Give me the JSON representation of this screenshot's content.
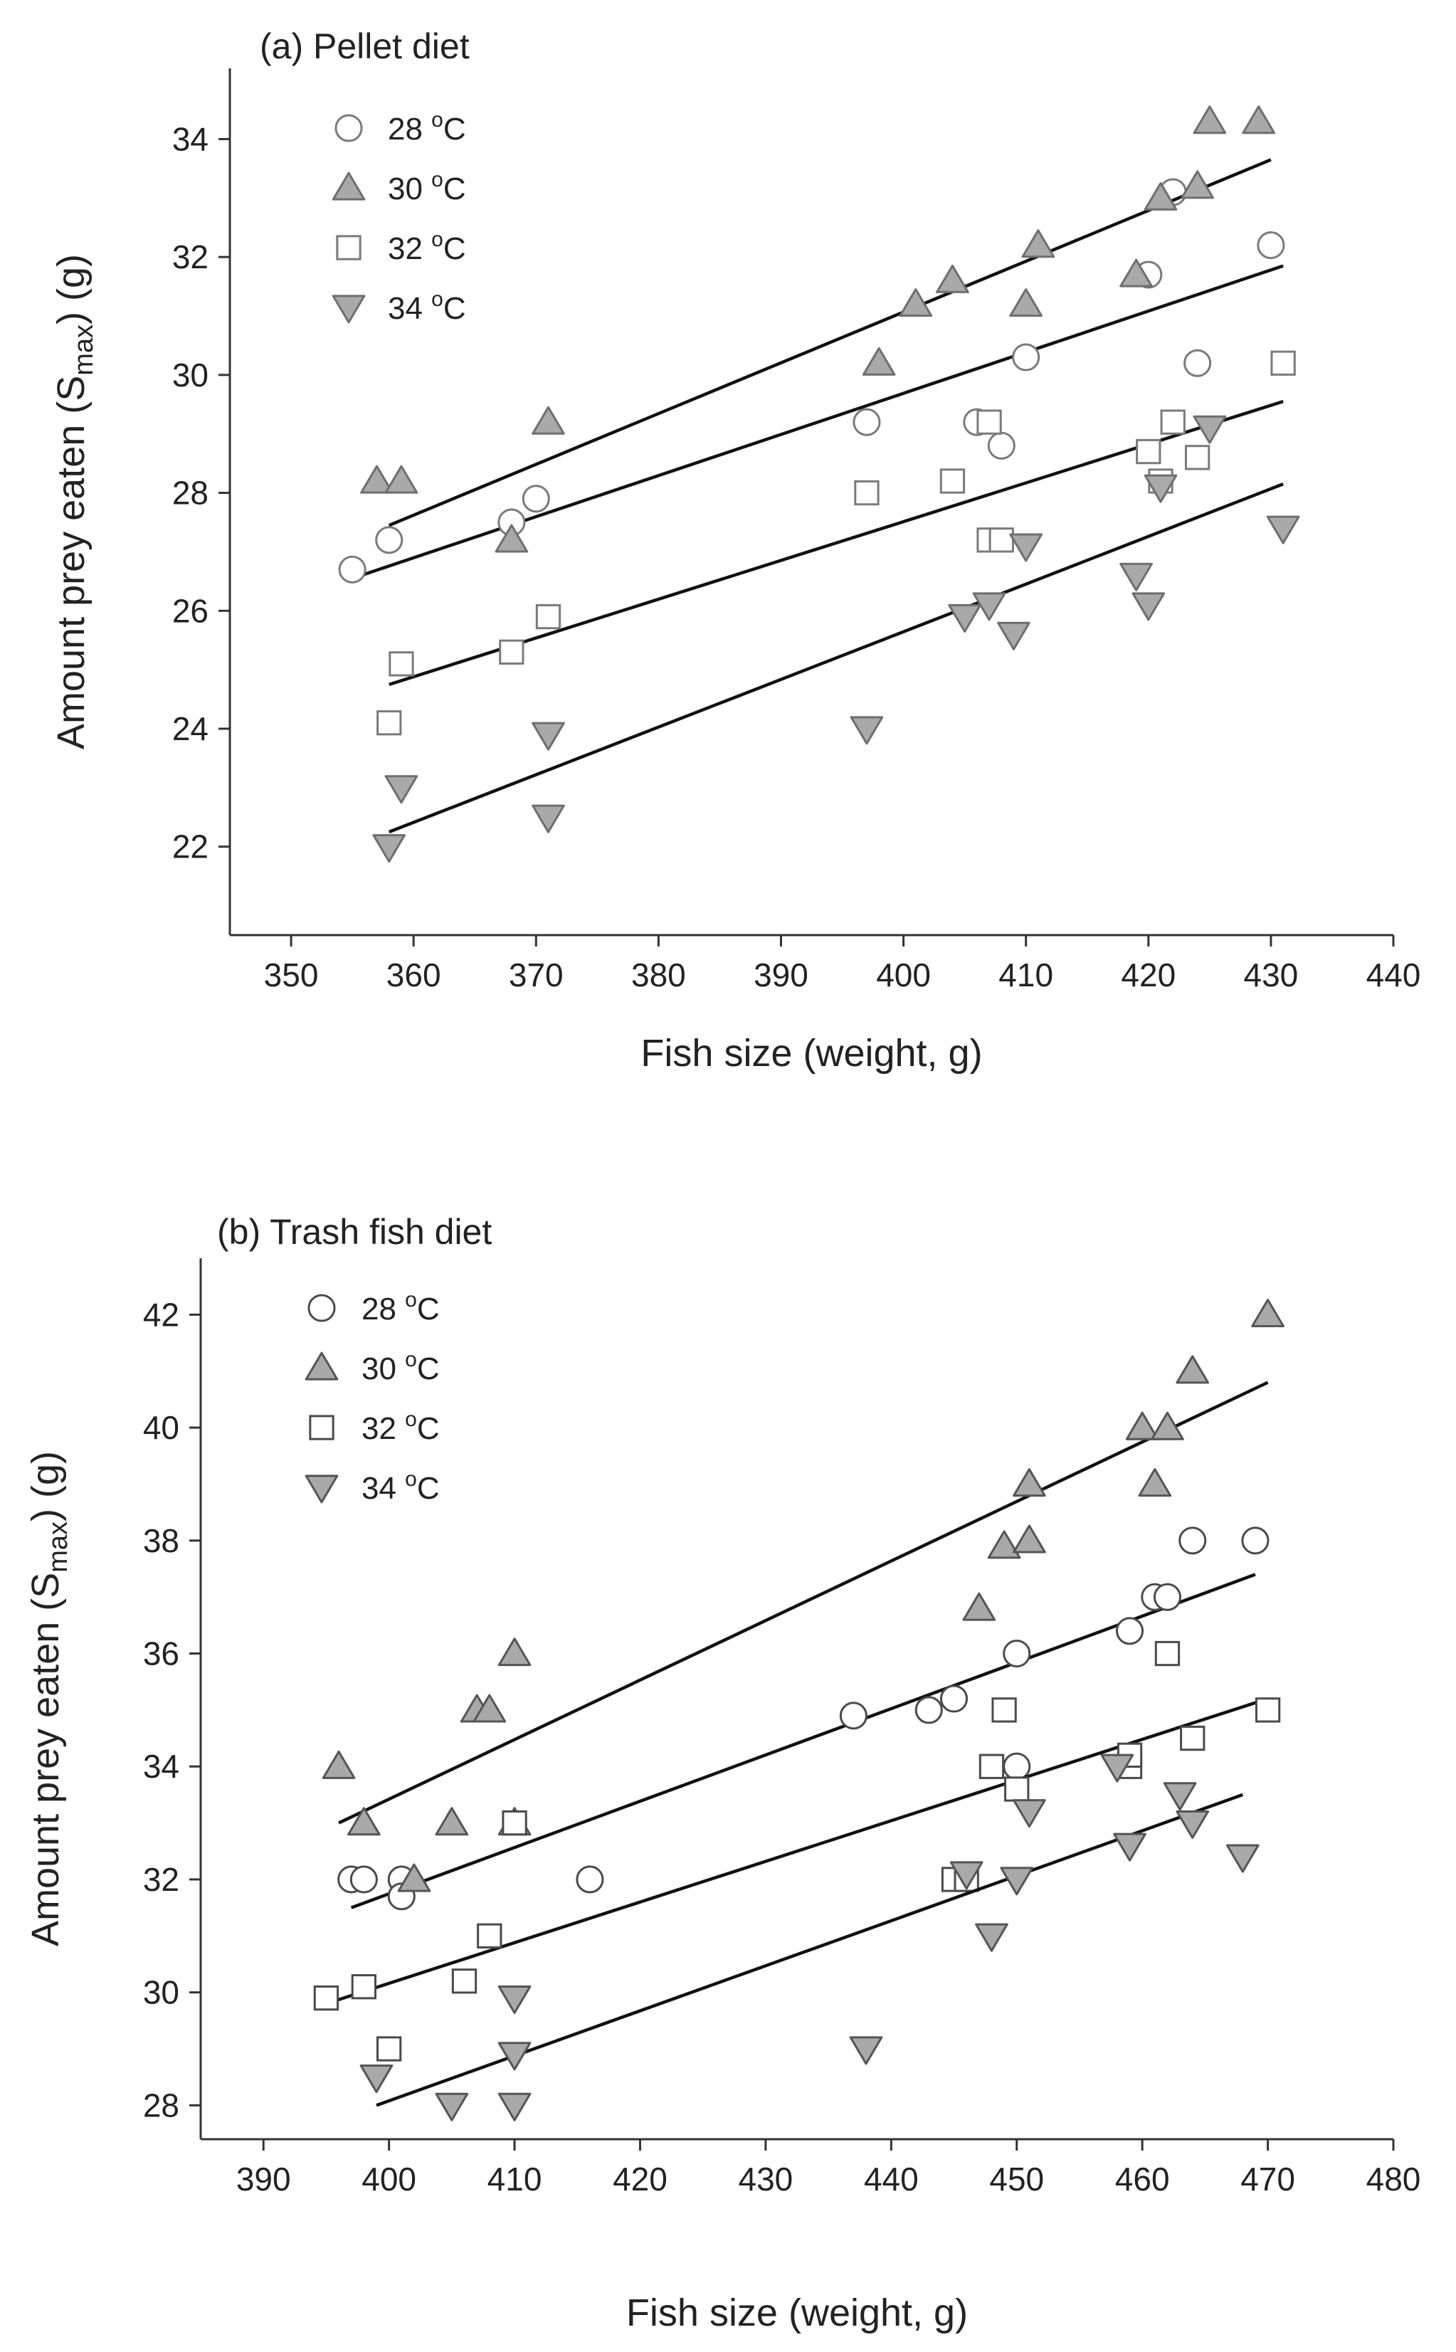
{
  "chart_data": [
    {
      "type": "scatter",
      "title": "(a) Pellet diet",
      "xlabel": "Fish size (weight, g)",
      "ylabel_parts": {
        "pre": "Amount prey eaten (S",
        "sub": "max",
        "post": ") (g)"
      },
      "xlim": [
        345,
        440
      ],
      "ylim": [
        20.5,
        35.2
      ],
      "xticks": [
        350,
        360,
        370,
        380,
        390,
        400,
        410,
        420,
        430,
        440
      ],
      "yticks": [
        22,
        24,
        26,
        28,
        30,
        32,
        34
      ],
      "grid": false,
      "legend_position": "top-left",
      "series": [
        {
          "name": "28 °C",
          "temp": "28",
          "marker": "circle",
          "fill": "#ffffff",
          "stroke": "#7a7a7a",
          "points": [
            [
              355,
              26.7
            ],
            [
              358,
              27.2
            ],
            [
              368,
              27.5
            ],
            [
              370,
              27.9
            ],
            [
              397,
              29.2
            ],
            [
              406,
              29.2
            ],
            [
              408,
              28.8
            ],
            [
              410,
              30.3
            ],
            [
              420,
              31.7
            ],
            [
              422,
              33.1
            ],
            [
              424,
              30.2
            ],
            [
              430,
              32.2
            ]
          ],
          "trend": [
            [
              355,
              26.55
            ],
            [
              431,
              31.85
            ]
          ]
        },
        {
          "name": "30 °C",
          "temp": "30",
          "marker": "triangle-up",
          "fill": "#a9a9a9",
          "stroke": "#6e6e6e",
          "points": [
            [
              357,
              28.2
            ],
            [
              359,
              28.2
            ],
            [
              368,
              27.2
            ],
            [
              371,
              29.2
            ],
            [
              398,
              30.2
            ],
            [
              401,
              31.2
            ],
            [
              404,
              31.6
            ],
            [
              410,
              31.2
            ],
            [
              411,
              32.2
            ],
            [
              419,
              31.7
            ],
            [
              421,
              33.0
            ],
            [
              424,
              33.2
            ],
            [
              425,
              34.3
            ],
            [
              429,
              34.3
            ]
          ],
          "trend": [
            [
              358,
              27.45
            ],
            [
              430,
              33.65
            ]
          ]
        },
        {
          "name": "32 °C",
          "temp": "32",
          "marker": "square",
          "fill": "#ffffff",
          "stroke": "#7a7a7a",
          "points": [
            [
              358,
              24.1
            ],
            [
              359,
              25.1
            ],
            [
              368,
              25.3
            ],
            [
              371,
              25.9
            ],
            [
              397,
              28.0
            ],
            [
              404,
              28.2
            ],
            [
              407,
              29.2
            ],
            [
              407,
              27.2
            ],
            [
              408,
              27.2
            ],
            [
              420,
              28.7
            ],
            [
              421,
              28.2
            ],
            [
              422,
              29.2
            ],
            [
              424,
              28.6
            ],
            [
              431,
              30.2
            ]
          ],
          "trend": [
            [
              358,
              24.75
            ],
            [
              431,
              29.55
            ]
          ]
        },
        {
          "name": "34 °C",
          "temp": "34",
          "marker": "triangle-down",
          "fill": "#a9a9a9",
          "stroke": "#6e6e6e",
          "points": [
            [
              358,
              22.0
            ],
            [
              359,
              23.0
            ],
            [
              371,
              23.9
            ],
            [
              371,
              22.5
            ],
            [
              397,
              24.0
            ],
            [
              405,
              25.9
            ],
            [
              407,
              26.1
            ],
            [
              409,
              25.6
            ],
            [
              410,
              27.1
            ],
            [
              419,
              26.6
            ],
            [
              420,
              26.1
            ],
            [
              421,
              28.1
            ],
            [
              425,
              29.1
            ],
            [
              431,
              27.4
            ]
          ],
          "trend": [
            [
              358,
              22.25
            ],
            [
              431,
              28.15
            ]
          ]
        }
      ]
    },
    {
      "type": "scatter",
      "title": "(b) Trash fish diet",
      "xlabel": "Fish size (weight, g)",
      "ylabel_parts": {
        "pre": "Amount prey eaten (S",
        "sub": "max",
        "post": ") (g)"
      },
      "xlim": [
        385,
        480
      ],
      "ylim": [
        27.4,
        43.0
      ],
      "xticks": [
        390,
        400,
        410,
        420,
        430,
        440,
        450,
        460,
        470,
        480
      ],
      "yticks": [
        28,
        30,
        32,
        34,
        36,
        38,
        40,
        42
      ],
      "grid": false,
      "legend_position": "top-left",
      "series": [
        {
          "name": "28 °C",
          "temp": "28",
          "marker": "circle",
          "fill": "#ffffff",
          "stroke": "#4a4a4a",
          "points": [
            [
              397,
              32.0
            ],
            [
              398,
              32.0
            ],
            [
              401,
              32.0
            ],
            [
              401,
              31.7
            ],
            [
              416,
              32.0
            ],
            [
              437,
              34.9
            ],
            [
              443,
              35.0
            ],
            [
              445,
              35.2
            ],
            [
              450,
              36.0
            ],
            [
              450,
              34.0
            ],
            [
              459,
              36.4
            ],
            [
              461,
              37.0
            ],
            [
              462,
              37.0
            ],
            [
              464,
              38.0
            ],
            [
              469,
              38.0
            ]
          ],
          "trend": [
            [
              397,
              31.5
            ],
            [
              469,
              37.4
            ]
          ]
        },
        {
          "name": "30 °C",
          "temp": "30",
          "marker": "triangle-up",
          "fill": "#a9a9a9",
          "stroke": "#555555",
          "points": [
            [
              396,
              34.0
            ],
            [
              398,
              33.0
            ],
            [
              402,
              32.0
            ],
            [
              405,
              33.0
            ],
            [
              407,
              35.0
            ],
            [
              408,
              35.0
            ],
            [
              410,
              36.0
            ],
            [
              410,
              33.0
            ],
            [
              447,
              36.8
            ],
            [
              449,
              37.9
            ],
            [
              451,
              39.0
            ],
            [
              451,
              38.0
            ],
            [
              460,
              40.0
            ],
            [
              461,
              39.0
            ],
            [
              462,
              40.0
            ],
            [
              464,
              41.0
            ],
            [
              470,
              42.0
            ]
          ],
          "trend": [
            [
              396,
              33.0
            ],
            [
              470,
              40.8
            ]
          ]
        },
        {
          "name": "32 °C",
          "temp": "32",
          "marker": "square",
          "fill": "#ffffff",
          "stroke": "#4a4a4a",
          "points": [
            [
              395,
              29.9
            ],
            [
              398,
              30.1
            ],
            [
              400,
              29.0
            ],
            [
              406,
              30.2
            ],
            [
              408,
              31.0
            ],
            [
              410,
              33.0
            ],
            [
              445,
              32.0
            ],
            [
              446,
              32.0
            ],
            [
              448,
              34.0
            ],
            [
              449,
              35.0
            ],
            [
              450,
              33.6
            ],
            [
              459,
              34.0
            ],
            [
              459,
              34.2
            ],
            [
              462,
              36.0
            ],
            [
              464,
              34.5
            ],
            [
              470,
              35.0
            ]
          ],
          "trend": [
            [
              395,
              29.8
            ],
            [
              470,
              35.2
            ]
          ]
        },
        {
          "name": "34 °C",
          "temp": "34",
          "marker": "triangle-down",
          "fill": "#a9a9a9",
          "stroke": "#555555",
          "points": [
            [
              399,
              28.5
            ],
            [
              405,
              28.0
            ],
            [
              410,
              28.0
            ],
            [
              410,
              29.9
            ],
            [
              410,
              28.9
            ],
            [
              438,
              29.0
            ],
            [
              446,
              32.1
            ],
            [
              448,
              31.0
            ],
            [
              450,
              32.0
            ],
            [
              451,
              33.2
            ],
            [
              458,
              34.0
            ],
            [
              459,
              32.6
            ],
            [
              463,
              33.5
            ],
            [
              464,
              33.0
            ],
            [
              468,
              32.4
            ]
          ],
          "trend": [
            [
              399,
              28.0
            ],
            [
              468,
              33.5
            ]
          ]
        }
      ]
    }
  ]
}
